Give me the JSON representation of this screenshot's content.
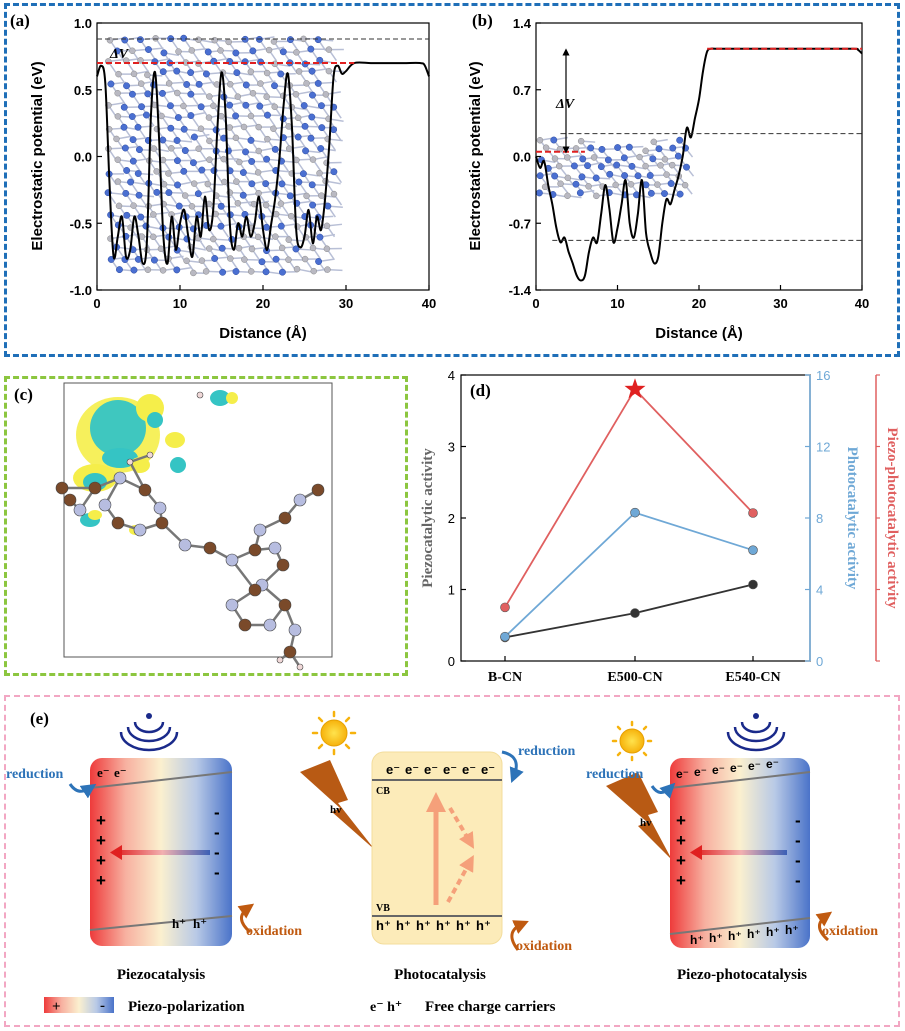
{
  "panels": {
    "a": {
      "label": "(a)"
    },
    "b": {
      "label": "(b)"
    },
    "c": {
      "label": "(c)"
    },
    "d": {
      "label": "(d)"
    },
    "e": {
      "label": "(e)"
    }
  },
  "chart_data": [
    {
      "id": "a",
      "type": "line",
      "xlabel": "Distance (Å)",
      "ylabel": "Electrostatic potential (eV)",
      "xlim": [
        0,
        40
      ],
      "ylim": [
        -1.0,
        1.0
      ],
      "xticks": [
        "0",
        "10",
        "20",
        "30",
        "40"
      ],
      "yticks": [
        "-1.0",
        "-0.5",
        "0.0",
        "0.5",
        "1.0"
      ],
      "annotation": "ΔV",
      "ref_lines": {
        "black_dashed": 0.88,
        "red_dashed": 0.7
      },
      "x": [
        0,
        0.5,
        1,
        1.5,
        2,
        2.5,
        3,
        3.5,
        4,
        4.5,
        5,
        5.5,
        6,
        6.5,
        7,
        7.5,
        8,
        8.5,
        9,
        9.5,
        10,
        10.5,
        11,
        11.5,
        12,
        12.5,
        13,
        13.5,
        14,
        14.5,
        15,
        15.5,
        16,
        16.5,
        17,
        17.5,
        18,
        18.5,
        19,
        19.5,
        20,
        20.5,
        21,
        21.5,
        22,
        22.5,
        23,
        23.5,
        24,
        24.5,
        25,
        25.5,
        26,
        26.5,
        27,
        27.5,
        28,
        28.5,
        29,
        29.5,
        30,
        31,
        33,
        35,
        37,
        39,
        39.5,
        40
      ],
      "y": [
        0.6,
        0.68,
        0.55,
        -0.2,
        -0.75,
        -0.6,
        -0.45,
        -0.75,
        -0.7,
        -0.45,
        -0.6,
        -0.8,
        -0.65,
        0.3,
        0.63,
        0.1,
        -0.6,
        -0.8,
        -0.45,
        -0.7,
        -0.5,
        -0.4,
        -0.6,
        -0.75,
        -0.45,
        -0.6,
        -0.3,
        -0.55,
        -0.4,
        0.2,
        0.63,
        0.3,
        -0.5,
        -0.7,
        -0.5,
        -0.6,
        -0.45,
        -0.6,
        -0.5,
        -0.3,
        -0.55,
        -0.7,
        -0.5,
        -0.3,
        0.0,
        0.4,
        0.62,
        0.2,
        -0.55,
        -0.68,
        -0.6,
        -0.4,
        -0.65,
        -0.45,
        -0.55,
        -0.3,
        0.1,
        0.6,
        0.68,
        0.62,
        0.64,
        0.7,
        0.7,
        0.7,
        0.7,
        0.7,
        0.68,
        0.6
      ]
    },
    {
      "id": "b",
      "type": "line",
      "xlabel": "Distance (Å)",
      "ylabel": "Electrostatic potential (eV)",
      "xlim": [
        0,
        40
      ],
      "ylim": [
        -1.4,
        1.4
      ],
      "xticks": [
        "0",
        "10",
        "20",
        "30",
        "40"
      ],
      "yticks": [
        "-1.4",
        "-0.7",
        "0.0",
        "0.7",
        "1.4"
      ],
      "annotation": "ΔV",
      "ref_lines": {
        "red_top": 1.13,
        "black_mid": 0.24,
        "red_mid": 0.05,
        "black_bottom": -0.88
      },
      "x": [
        0,
        0.5,
        1,
        1.5,
        2,
        2.5,
        3,
        3.5,
        4,
        4.5,
        5,
        5.5,
        6,
        6.5,
        7,
        7.5,
        8,
        8.5,
        9,
        9.5,
        10,
        10.5,
        11,
        11.5,
        12,
        12.5,
        13,
        13.5,
        14,
        14.5,
        15,
        15.5,
        16,
        16.5,
        17,
        17.5,
        18,
        18.5,
        19,
        19.5,
        20,
        20.5,
        21,
        21.5,
        22,
        25,
        30,
        35,
        39,
        39.5,
        40
      ],
      "y": [
        0.0,
        -0.12,
        -0.05,
        -0.3,
        -0.5,
        -0.75,
        -0.9,
        -0.85,
        -1.0,
        -1.12,
        -1.25,
        -1.3,
        -1.25,
        -1.0,
        -0.85,
        -0.9,
        -0.6,
        -0.3,
        -0.55,
        -0.9,
        -0.75,
        -0.5,
        -0.25,
        -0.7,
        -0.85,
        -0.6,
        -0.25,
        -0.8,
        -1.0,
        -1.12,
        -1.05,
        -0.7,
        -0.45,
        -0.5,
        -0.35,
        -0.2,
        0.0,
        0.3,
        0.2,
        0.4,
        0.6,
        0.9,
        1.1,
        1.13,
        1.13,
        1.13,
        1.13,
        1.13,
        1.13,
        1.12,
        1.08
      ]
    },
    {
      "id": "d",
      "type": "line",
      "categories": [
        "B-CN",
        "E500-CN",
        "E540-CN"
      ],
      "left_axis": {
        "label": "Piezocatalytic activity",
        "ylim": [
          0,
          4
        ],
        "ticks": [
          "0",
          "1",
          "2",
          "3",
          "4"
        ]
      },
      "right_axis_1": {
        "label": "Photocatalytic activity",
        "ylim": [
          0,
          16
        ],
        "ticks": [
          "0",
          "4",
          "8",
          "12",
          "16"
        ],
        "color": "#6fa8d6"
      },
      "right_axis_2": {
        "label": "Piezo-photocatalytic activity",
        "color": "#e06060"
      },
      "series": [
        {
          "name": "Piezocatalytic activity",
          "axis": "left",
          "color": "#333333",
          "values": [
            0.33,
            0.67,
            1.07
          ]
        },
        {
          "name": "Photocatalytic activity",
          "axis": "right1",
          "color": "#6fa8d6",
          "values": [
            1.36,
            8.3,
            6.2
          ]
        },
        {
          "name": "Piezo-photocatalytic activity",
          "axis": "left",
          "color": "#e06060",
          "values": [
            0.75,
            3.8,
            2.07
          ]
        }
      ]
    }
  ],
  "scheme": {
    "reduction": "reduction",
    "oxidation": "oxidation",
    "hv": "hv",
    "cb": "CB",
    "vb": "VB",
    "electron": "e⁻",
    "hole": "h⁺",
    "plus": "+",
    "minus": "-",
    "piezo_title": "Piezocatalysis",
    "photo_title": "Photocatalysis",
    "piezophoto_title": "Piezo-photocatalysis",
    "legend_plus": "+",
    "legend_minus": "-",
    "legend_polarization": "Piezo-polarization",
    "legend_carriers_symbols": "e⁻  h⁺",
    "legend_carriers": "Free charge carriers"
  },
  "colors": {
    "blue_frame": "#1f6fb8",
    "green_frame": "#8cc63f",
    "pink_frame": "#f2a7c3",
    "red_dashed": "#e02020",
    "reduction_blue": "#2d73b8",
    "oxidation_brown": "#c05a10"
  }
}
